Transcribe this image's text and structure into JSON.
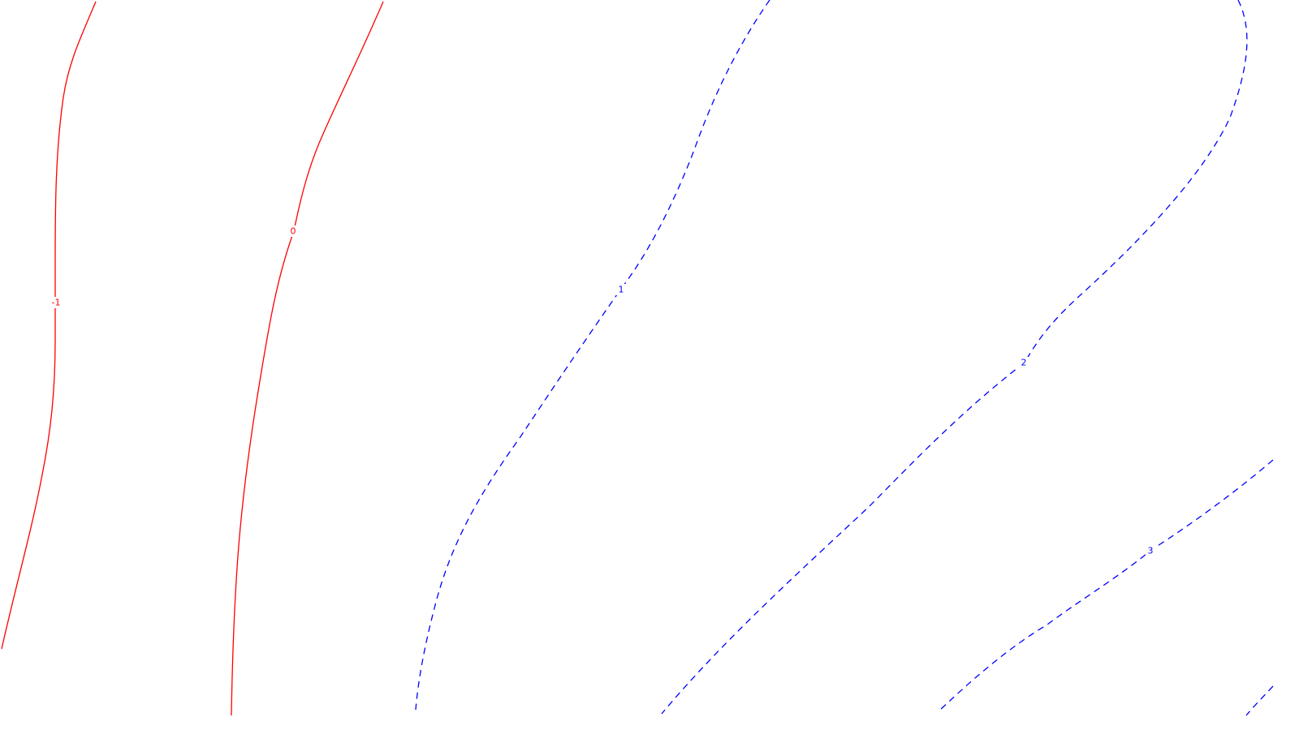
{
  "chart_data": {
    "type": "contour",
    "title": "",
    "xlabel": "",
    "ylabel": "",
    "grid": false,
    "negative_style": "solid",
    "positive_style": "dashed",
    "colors": {
      "negative": "#ff0000",
      "positive": "#0000ff",
      "background": "#ffffff"
    },
    "levels": [
      {
        "value": -1,
        "label": "-1",
        "sign": "negative"
      },
      {
        "value": 0,
        "label": "0",
        "sign": "negative"
      },
      {
        "value": 1,
        "label": "1",
        "sign": "positive"
      },
      {
        "value": 2,
        "label": "2",
        "sign": "positive"
      },
      {
        "value": 3,
        "label": "3",
        "sign": "positive"
      },
      {
        "value": 4,
        "label": "",
        "sign": "positive"
      }
    ]
  }
}
